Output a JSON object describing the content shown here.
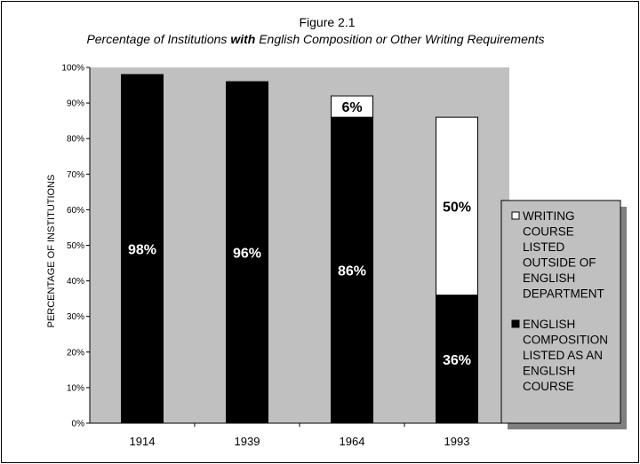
{
  "chart_data": {
    "type": "bar",
    "stacked": true,
    "title": "Figure 2.1",
    "subtitle_parts": [
      "Percentage of Institutions ",
      "with",
      " English Composition or Other Writing Requirements"
    ],
    "ylabel": "PERCENTAGE OF INSTITUTIONS",
    "xlabel": "",
    "ylim": [
      0,
      100
    ],
    "yticks": [
      "0%",
      "10%",
      "20%",
      "30%",
      "40%",
      "50%",
      "60%",
      "70%",
      "80%",
      "90%",
      "100%"
    ],
    "categories": [
      "1914",
      "1939",
      "1964",
      "1993"
    ],
    "series": [
      {
        "name": "ENGLISH COMPOSITION LISTED AS AN ENGLISH COURSE",
        "color": "#000000",
        "values": [
          98,
          96,
          86,
          36
        ],
        "labels": [
          "98%",
          "96%",
          "86%",
          "36%"
        ]
      },
      {
        "name": "WRITING COURSE LISTED OUTSIDE OF ENGLISH DEPARTMENT",
        "color": "#ffffff",
        "values": [
          0,
          0,
          6,
          50
        ],
        "labels": [
          "",
          "",
          "6%",
          "50%"
        ]
      }
    ],
    "plot_background": "#c0c0c0",
    "legend": {
      "placement": "right",
      "entries": [
        {
          "color": "#ffffff",
          "lines": [
            "WRITING",
            "COURSE",
            "LISTED",
            "OUTSIDE OF",
            "ENGLISH",
            "DEPARTMENT"
          ]
        },
        {
          "color": "#000000",
          "lines": [
            "ENGLISH",
            "COMPOSITION",
            "LISTED AS AN",
            "ENGLISH",
            "COURSE"
          ]
        }
      ]
    }
  }
}
